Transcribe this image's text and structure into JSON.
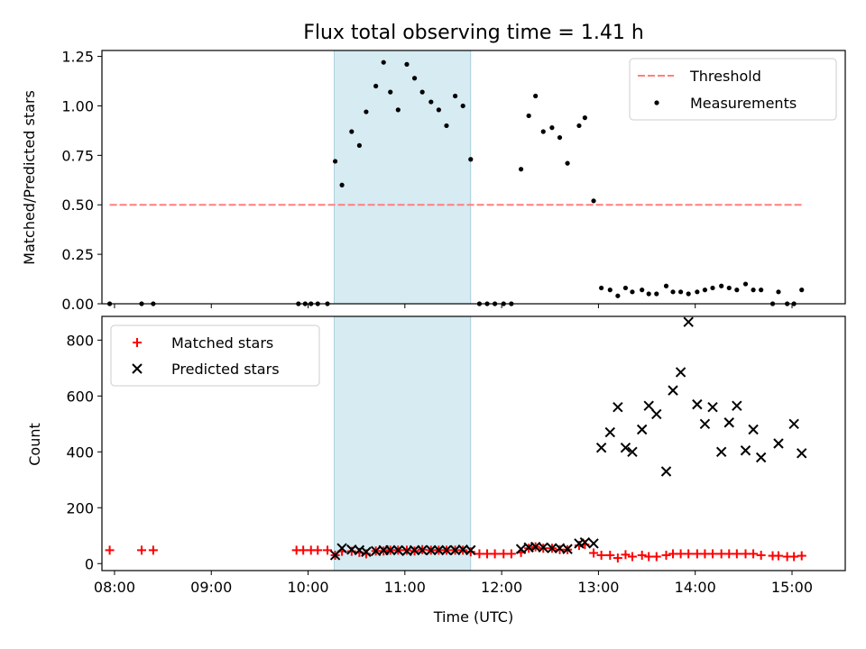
{
  "chart_data": [
    {
      "type": "scatter",
      "title": "Flux total observing time = 1.41 h",
      "xlabel": "",
      "ylabel": "Matched/Predicted stars",
      "xlim": [
        7.87,
        15.55
      ],
      "ylim": [
        0,
        1.28
      ],
      "xticks": [
        8,
        9,
        10,
        11,
        12,
        13,
        14,
        15
      ],
      "yticks": [
        "0.00",
        "0.25",
        "0.50",
        "0.75",
        "1.00",
        "1.25"
      ],
      "shaded_span": [
        10.27,
        11.68
      ],
      "threshold": {
        "label": "Threshold",
        "value": 0.5,
        "x_range": [
          7.95,
          15.12
        ],
        "color": "#ff7f7f"
      },
      "legend": {
        "placement": "top-right",
        "entries": [
          "Threshold",
          "Measurements"
        ]
      },
      "series": [
        {
          "name": "Measurements",
          "color": "#000000",
          "x": [
            7.95,
            8.28,
            8.4,
            9.9,
            9.97,
            10.03,
            10.1,
            10.2,
            10.28,
            10.35,
            10.45,
            10.53,
            10.6,
            10.7,
            10.78,
            10.85,
            10.93,
            11.02,
            11.1,
            11.18,
            11.27,
            11.35,
            11.43,
            11.52,
            11.6,
            11.68,
            11.77,
            11.85,
            11.93,
            12.02,
            12.1,
            12.2,
            12.28,
            12.35,
            12.43,
            12.52,
            12.6,
            12.68,
            12.8,
            12.86,
            12.95,
            13.03,
            13.12,
            13.2,
            13.28,
            13.35,
            13.45,
            13.52,
            13.6,
            13.7,
            13.77,
            13.85,
            13.93,
            14.02,
            14.1,
            14.18,
            14.27,
            14.35,
            14.43,
            14.52,
            14.6,
            14.68,
            14.8,
            14.86,
            14.95,
            15.02,
            15.1
          ],
          "y": [
            0.0,
            0.0,
            0.0,
            0.0,
            0.0,
            0.0,
            0.0,
            0.0,
            0.72,
            0.6,
            0.87,
            0.8,
            0.97,
            1.1,
            1.22,
            1.07,
            0.98,
            1.21,
            1.14,
            1.07,
            1.02,
            0.98,
            0.9,
            1.05,
            1.0,
            0.73,
            0.0,
            0.0,
            0.0,
            0.0,
            0.0,
            0.68,
            0.95,
            1.05,
            0.87,
            0.89,
            0.84,
            0.71,
            0.9,
            0.94,
            0.52,
            0.08,
            0.07,
            0.04,
            0.08,
            0.06,
            0.07,
            0.05,
            0.05,
            0.09,
            0.06,
            0.06,
            0.05,
            0.06,
            0.07,
            0.08,
            0.09,
            0.08,
            0.07,
            0.1,
            0.07,
            0.07,
            0.0,
            0.06,
            0.0,
            0.0,
            0.07
          ]
        }
      ]
    },
    {
      "type": "scatter",
      "title": "",
      "xlabel": "Time (UTC)",
      "ylabel": "Count",
      "xlim": [
        7.87,
        15.55
      ],
      "ylim": [
        -25,
        885
      ],
      "xticks": [
        8,
        9,
        10,
        11,
        12,
        13,
        14,
        15
      ],
      "xticklabels": [
        "08:00",
        "09:00",
        "10:00",
        "11:00",
        "12:00",
        "13:00",
        "14:00",
        "15:00"
      ],
      "yticks": [
        "0",
        "200",
        "400",
        "600",
        "800"
      ],
      "shaded_span": [
        10.27,
        11.68
      ],
      "legend": {
        "placement": "top-left",
        "entries": [
          "Matched stars",
          "Predicted stars"
        ]
      },
      "series": [
        {
          "name": "Matched stars",
          "marker": "+",
          "color": "#ff0000",
          "x": [
            7.95,
            8.28,
            8.4,
            9.88,
            9.95,
            10.03,
            10.1,
            10.2,
            10.28,
            10.35,
            10.45,
            10.53,
            10.6,
            10.7,
            10.78,
            10.85,
            10.93,
            11.02,
            11.1,
            11.18,
            11.27,
            11.35,
            11.43,
            11.52,
            11.6,
            11.68,
            11.77,
            11.85,
            11.93,
            12.02,
            12.1,
            12.2,
            12.28,
            12.35,
            12.43,
            12.52,
            12.6,
            12.68,
            12.8,
            12.86,
            12.95,
            13.03,
            13.12,
            13.2,
            13.28,
            13.35,
            13.45,
            13.52,
            13.6,
            13.7,
            13.77,
            13.85,
            13.93,
            14.02,
            14.1,
            14.18,
            14.27,
            14.35,
            14.43,
            14.52,
            14.6,
            14.68,
            14.8,
            14.86,
            14.95,
            15.02,
            15.1
          ],
          "y": [
            48,
            48,
            48,
            48,
            48,
            48,
            48,
            48,
            30,
            44,
            44,
            40,
            35,
            45,
            45,
            48,
            48,
            48,
            45,
            50,
            48,
            48,
            48,
            48,
            48,
            42,
            35,
            35,
            35,
            35,
            35,
            40,
            55,
            60,
            55,
            55,
            50,
            50,
            65,
            68,
            38,
            30,
            30,
            20,
            32,
            25,
            30,
            25,
            25,
            30,
            35,
            35,
            35,
            35,
            35,
            35,
            35,
            35,
            35,
            35,
            35,
            30,
            28,
            28,
            25,
            25,
            28
          ]
        },
        {
          "name": "Predicted stars",
          "marker": "x",
          "color": "#000000",
          "x": [
            10.28,
            10.35,
            10.45,
            10.53,
            10.6,
            10.7,
            10.78,
            10.85,
            10.93,
            11.02,
            11.1,
            11.18,
            11.27,
            11.35,
            11.43,
            11.52,
            11.6,
            11.68,
            12.2,
            12.28,
            12.35,
            12.43,
            12.52,
            12.6,
            12.68,
            12.8,
            12.86,
            12.95,
            13.03,
            13.12,
            13.2,
            13.28,
            13.35,
            13.45,
            13.52,
            13.6,
            13.7,
            13.77,
            13.85,
            13.93,
            14.02,
            14.1,
            14.18,
            14.27,
            14.35,
            14.43,
            14.52,
            14.6,
            14.68,
            14.86,
            15.02,
            15.1
          ],
          "y": [
            30,
            55,
            50,
            48,
            42,
            45,
            48,
            48,
            48,
            45,
            48,
            48,
            48,
            48,
            48,
            48,
            50,
            48,
            52,
            58,
            60,
            58,
            55,
            55,
            52,
            72,
            76,
            72,
            415,
            470,
            560,
            415,
            400,
            480,
            565,
            535,
            330,
            620,
            685,
            865,
            570,
            500,
            560,
            400,
            505,
            565,
            405,
            480,
            380,
            430,
            500,
            395
          ]
        }
      ]
    }
  ]
}
